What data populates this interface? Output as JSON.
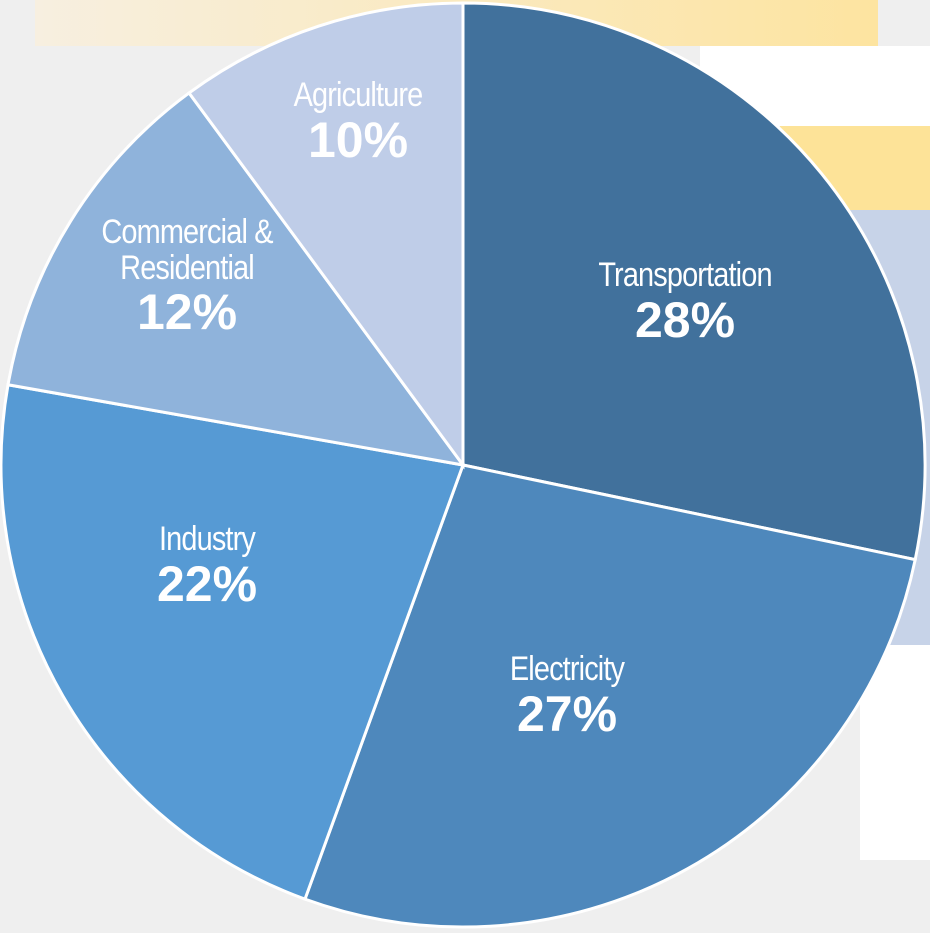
{
  "chart_data": {
    "type": "pie",
    "categories": [
      "Transportation",
      "Electricity",
      "Industry",
      "Commercial & Residential",
      "Agriculture"
    ],
    "values": [
      28,
      27,
      22,
      12,
      10
    ],
    "value_labels": [
      "28%",
      "27%",
      "22%",
      "12%",
      "10%"
    ],
    "colors": [
      "#41719c",
      "#4e88bc",
      "#569ad4",
      "#8fb3db",
      "#bfcde8"
    ],
    "start_angle": 0,
    "direction": "clockwise"
  }
}
